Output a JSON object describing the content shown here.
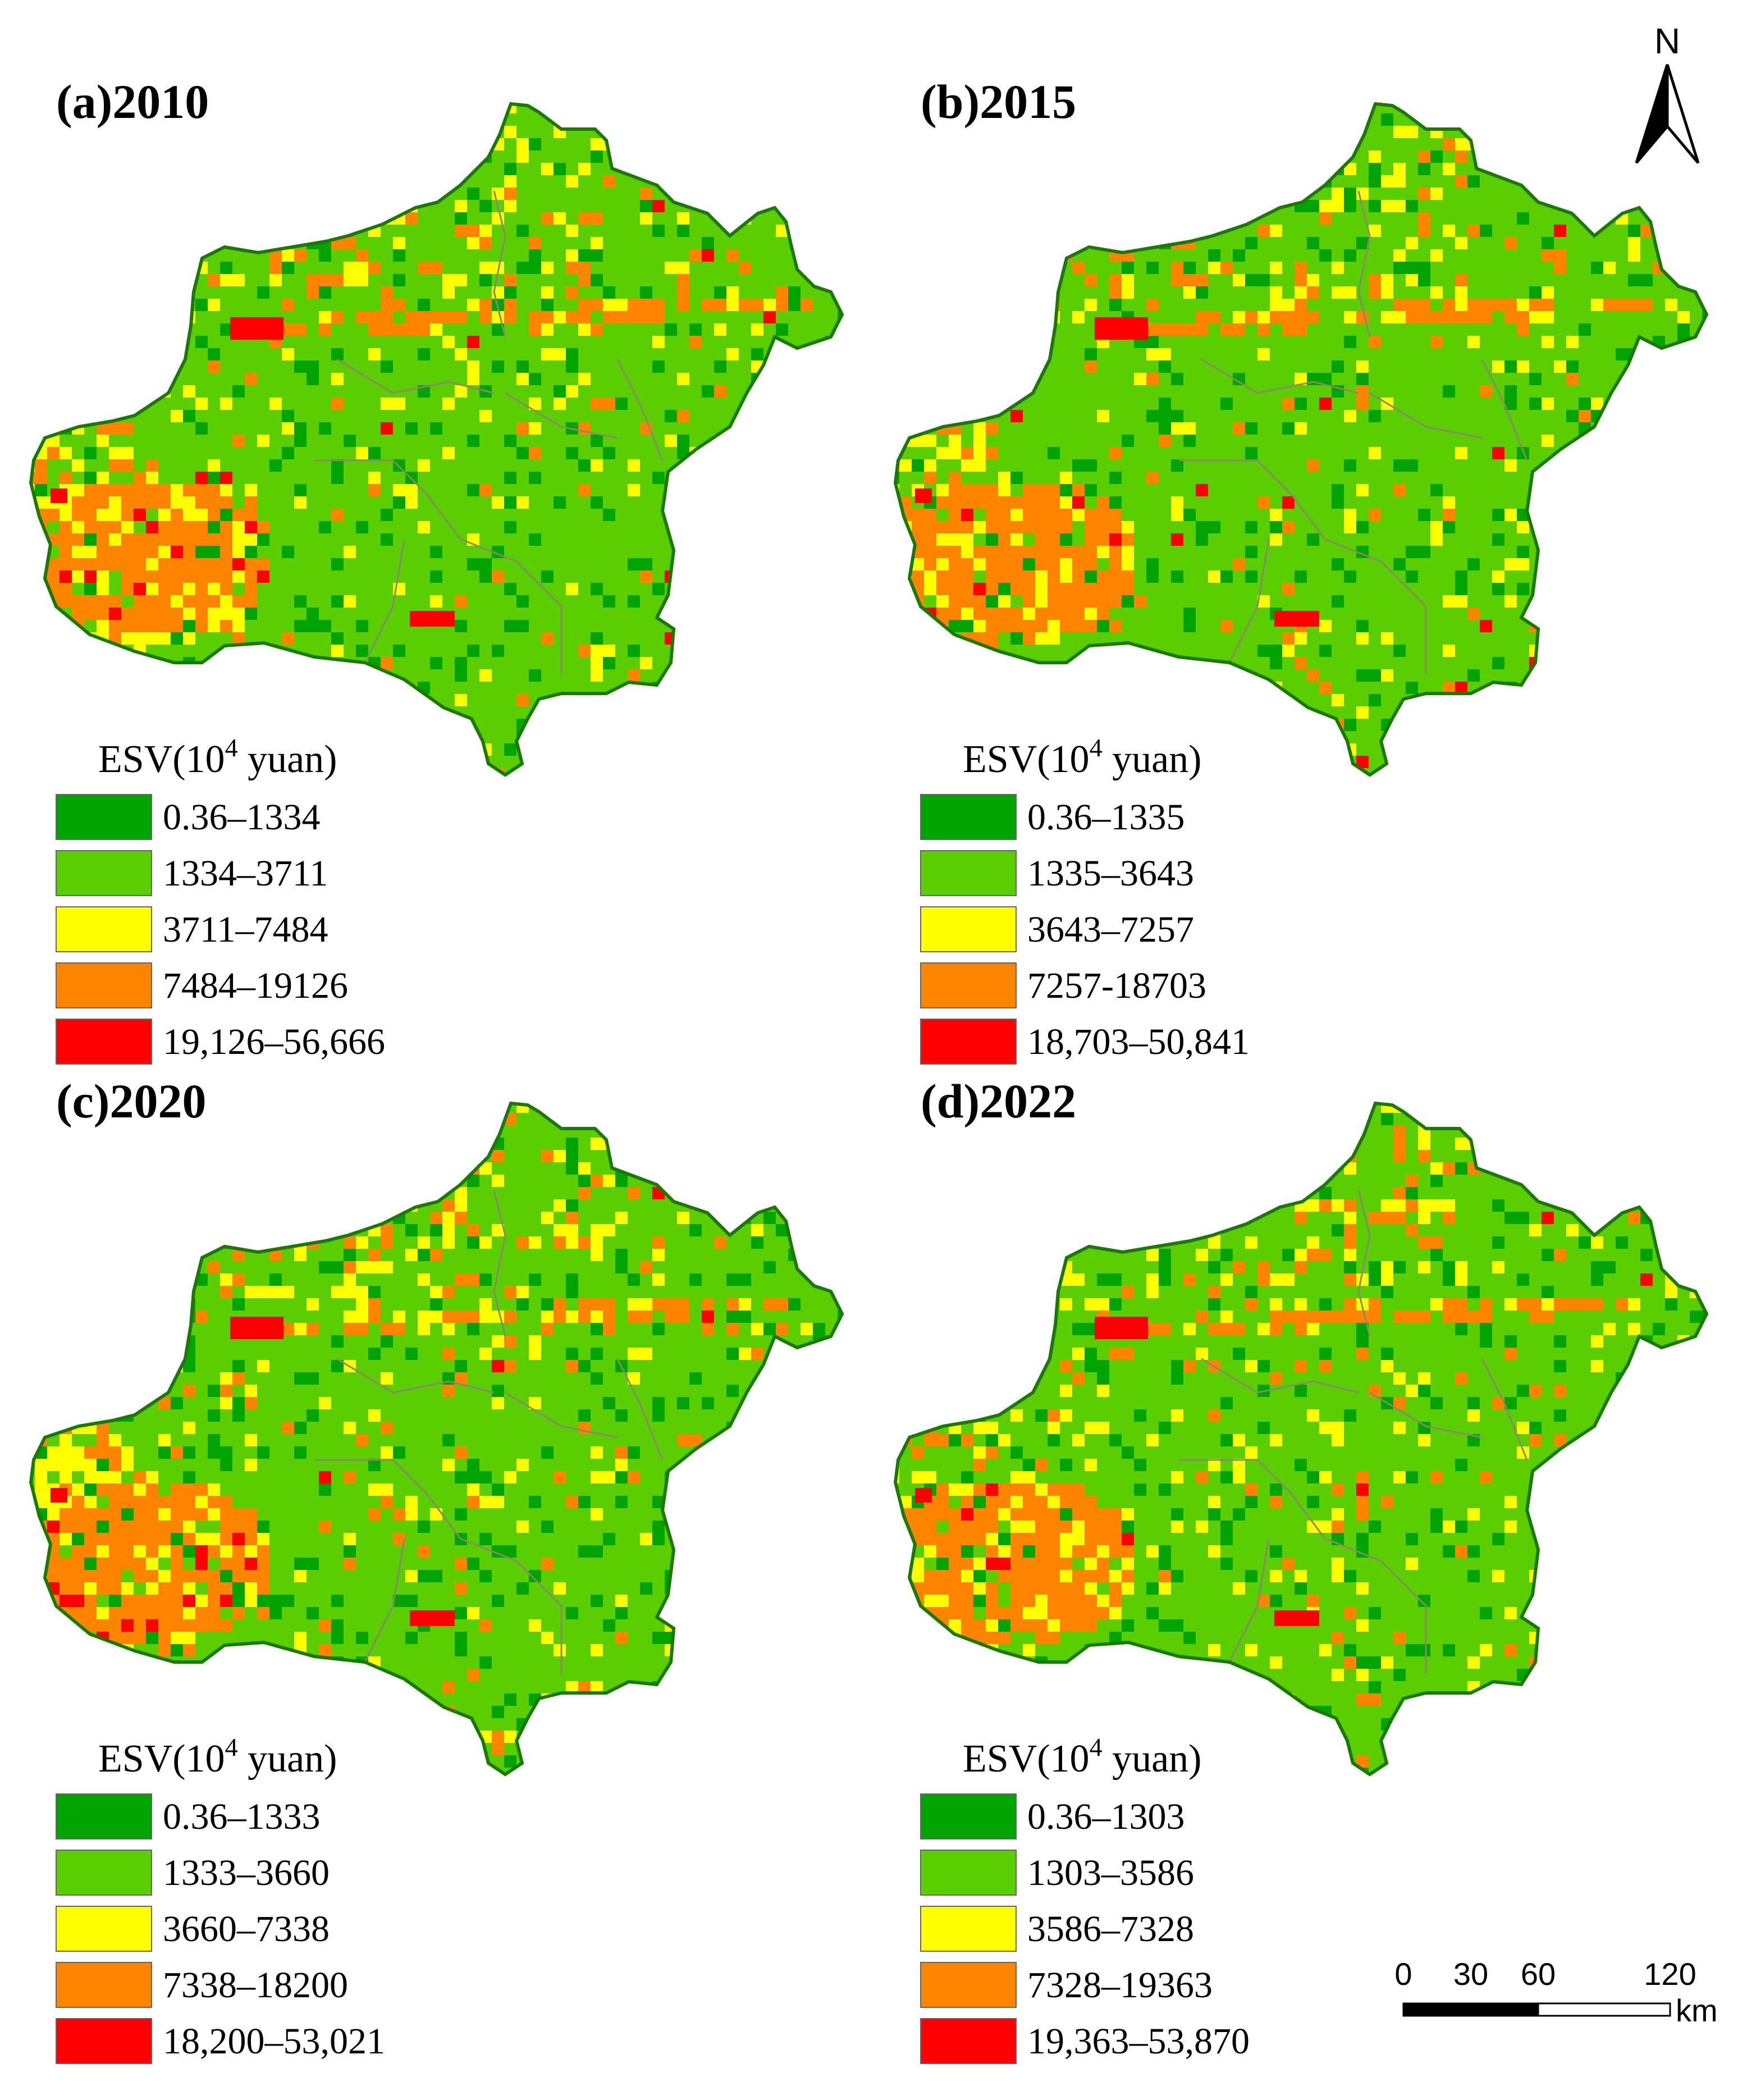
{
  "colors": {
    "class1": "#00a300",
    "class2": "#5ace00",
    "class3": "#ffff00",
    "class4": "#ff8400",
    "class5": "#ff0000",
    "boundary": "#8a8a6a"
  },
  "panels": [
    {
      "title": "(a)2010",
      "legend": {
        "title": "ESV(10",
        "superscript": "4",
        "unit": " yuan)",
        "classes": [
          "0.36–1334",
          "1334–3711",
          "3711–7484",
          "7484–19126",
          "19,126–56,666"
        ]
      }
    },
    {
      "title": "(b)2015",
      "legend": {
        "title": "ESV(10",
        "superscript": "4",
        "unit": "  yuan)",
        "classes": [
          "0.36–1335",
          "1335–3643",
          "3643–7257",
          "7257-18703",
          "18,703–50,841"
        ]
      }
    },
    {
      "title": "(c)2020",
      "legend": {
        "title": "ESV(10",
        "superscript": "4",
        "unit": "  yuan)",
        "classes": [
          "0.36–1333",
          "1333–3660",
          "3660–7338",
          "7338–18200",
          "18,200–53,021"
        ]
      }
    },
    {
      "title": "(d)2022",
      "legend": {
        "title": "ESV(10",
        "superscript": "4",
        "unit": "  yuan)",
        "classes": [
          "0.36–1303",
          "1303–3586",
          "3586–7328",
          "7328–19363",
          "19,363–53,870"
        ]
      }
    }
  ],
  "north_arrow": {
    "label": "N"
  },
  "scale_bar": {
    "ticks": [
      "0",
      "30",
      "60",
      "120"
    ],
    "unit": "km"
  }
}
